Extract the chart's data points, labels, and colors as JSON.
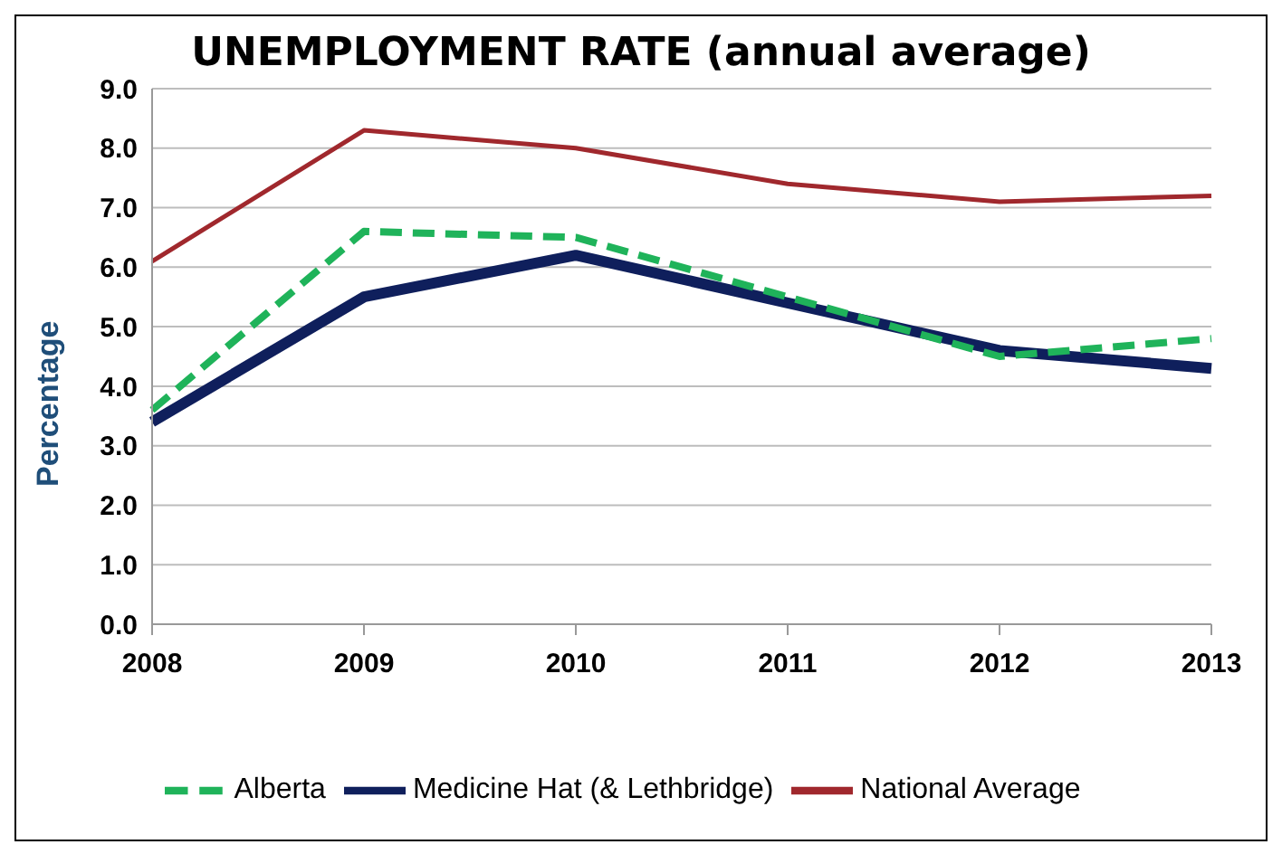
{
  "chart_data": {
    "type": "line",
    "title": "UNEMPLOYMENT RATE (annual average)",
    "ylabel": "Percentage",
    "categories": [
      "2008",
      "2009",
      "2010",
      "2011",
      "2012",
      "2013"
    ],
    "series": [
      {
        "name": "Medicine Hat (& Lethbridge)",
        "color": "#0f1f5c",
        "values": [
          3.4,
          5.5,
          6.2,
          5.4,
          4.6,
          4.3
        ]
      },
      {
        "name": "Alberta",
        "color": "#1fb35a",
        "values": [
          3.6,
          6.6,
          6.5,
          5.5,
          4.5,
          4.8
        ],
        "line_style": "dashed"
      },
      {
        "name": "National Average",
        "color": "#a0282d",
        "values": [
          6.1,
          8.3,
          8.0,
          7.4,
          7.1,
          7.2
        ]
      }
    ],
    "ylim": [
      0,
      9
    ],
    "yticks": [
      {
        "value": 0,
        "label": "0.0"
      },
      {
        "value": 1,
        "label": "1.0"
      },
      {
        "value": 2,
        "label": "2.0"
      },
      {
        "value": 3,
        "label": "3.0"
      },
      {
        "value": 4,
        "label": "4.0"
      },
      {
        "value": 5,
        "label": "5.0"
      },
      {
        "value": 6,
        "label": "6.0"
      },
      {
        "value": 7,
        "label": "7.0"
      },
      {
        "value": 8,
        "label": "8.0"
      },
      {
        "value": 9,
        "label": "9.0"
      }
    ],
    "grid": "y",
    "legend": "bottom",
    "marker": "none",
    "line_style": "solid"
  }
}
